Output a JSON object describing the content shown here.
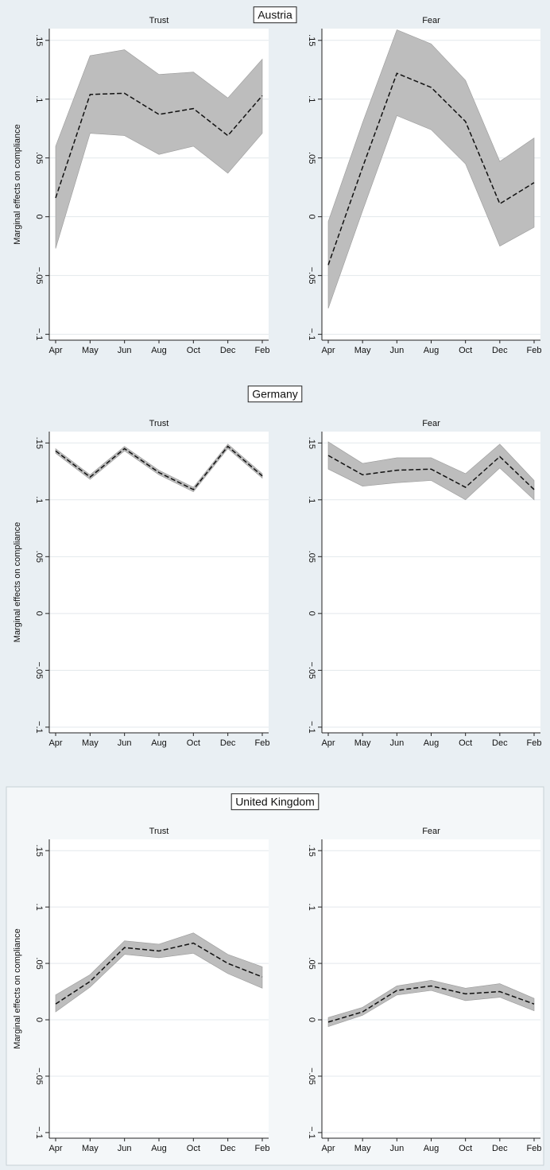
{
  "groups": [
    "Austria",
    "Germany",
    "United Kingdom"
  ],
  "chart_data": [
    {
      "type": "line",
      "title": "Trust",
      "ylabel": "Marginal effects on compliance",
      "categories": [
        "Apr",
        "May",
        "Jun",
        "Aug",
        "Oct",
        "Dec",
        "Feb"
      ],
      "values": [
        0.016,
        0.104,
        0.105,
        0.087,
        0.092,
        0.069,
        0.103
      ],
      "upper": [
        0.06,
        0.137,
        0.142,
        0.121,
        0.123,
        0.101,
        0.134
      ],
      "lower": [
        -0.027,
        0.071,
        0.069,
        0.053,
        0.06,
        0.037,
        0.071
      ],
      "line_color": "#111111",
      "band_color": "#bdbdbd",
      "ylim": [
        -0.105,
        0.16
      ],
      "yticks": [
        {
          "value": -0.1,
          "label": "−.1"
        },
        {
          "value": -0.05,
          "label": "−.05"
        },
        0,
        {
          "value": 0.05,
          "label": ".05"
        },
        {
          "value": 0.1,
          "label": ".1"
        },
        {
          "value": 0.15,
          "label": ".15"
        }
      ],
      "grid": true
    },
    {
      "type": "line",
      "title": "Fear",
      "categories": [
        "Apr",
        "May",
        "Jun",
        "Aug",
        "Oct",
        "Dec",
        "Feb"
      ],
      "values": [
        -0.041,
        0.042,
        0.122,
        0.11,
        0.081,
        0.011,
        0.029
      ],
      "upper": [
        -0.004,
        0.08,
        0.159,
        0.147,
        0.116,
        0.047,
        0.067
      ],
      "lower": [
        -0.078,
        0.005,
        0.086,
        0.074,
        0.045,
        -0.025,
        -0.009
      ],
      "line_color": "#111111",
      "band_color": "#bdbdbd",
      "ylim": [
        -0.105,
        0.16
      ],
      "yticks": [
        {
          "value": -0.1,
          "label": "−.1"
        },
        {
          "value": -0.05,
          "label": "−.05"
        },
        0,
        {
          "value": 0.05,
          "label": ".05"
        },
        {
          "value": 0.1,
          "label": ".1"
        },
        {
          "value": 0.15,
          "label": ".15"
        }
      ],
      "grid": true
    },
    {
      "type": "line",
      "title": "Trust",
      "ylabel": "Marginal effects on compliance",
      "categories": [
        "Apr",
        "May",
        "Jun",
        "Aug",
        "Oct",
        "Dec",
        "Feb"
      ],
      "values": [
        0.143,
        0.12,
        0.145,
        0.124,
        0.109,
        0.147,
        0.121
      ],
      "upper": [
        0.145,
        0.122,
        0.147,
        0.126,
        0.111,
        0.149,
        0.123
      ],
      "lower": [
        0.141,
        0.118,
        0.143,
        0.122,
        0.107,
        0.145,
        0.119
      ],
      "line_color": "#111111",
      "band_color": "#bdbdbd",
      "ylim": [
        -0.105,
        0.16
      ],
      "yticks": [
        {
          "value": -0.1,
          "label": "−.1"
        },
        {
          "value": -0.05,
          "label": "−.05"
        },
        0,
        {
          "value": 0.05,
          "label": ".05"
        },
        {
          "value": 0.1,
          "label": ".1"
        },
        {
          "value": 0.15,
          "label": ".15"
        }
      ],
      "grid": true
    },
    {
      "type": "line",
      "title": "Fear",
      "categories": [
        "Apr",
        "May",
        "Jun",
        "Aug",
        "Oct",
        "Dec",
        "Feb"
      ],
      "values": [
        0.139,
        0.122,
        0.126,
        0.127,
        0.111,
        0.138,
        0.109
      ],
      "upper": [
        0.151,
        0.132,
        0.137,
        0.137,
        0.123,
        0.149,
        0.117
      ],
      "lower": [
        0.127,
        0.112,
        0.115,
        0.117,
        0.1,
        0.128,
        0.1
      ],
      "line_color": "#111111",
      "band_color": "#bdbdbd",
      "ylim": [
        -0.105,
        0.16
      ],
      "yticks": [
        {
          "value": -0.1,
          "label": "−.1"
        },
        {
          "value": -0.05,
          "label": "−.05"
        },
        0,
        {
          "value": 0.05,
          "label": ".05"
        },
        {
          "value": 0.1,
          "label": ".1"
        },
        {
          "value": 0.15,
          "label": ".15"
        }
      ],
      "grid": true
    },
    {
      "type": "line",
      "title": "Trust",
      "ylabel": "Marginal effects on compliance",
      "categories": [
        "Apr",
        "May",
        "Jun",
        "Aug",
        "Oct",
        "Dec",
        "Feb"
      ],
      "values": [
        0.014,
        0.034,
        0.064,
        0.061,
        0.068,
        0.05,
        0.038
      ],
      "upper": [
        0.022,
        0.04,
        0.07,
        0.067,
        0.077,
        0.058,
        0.047
      ],
      "lower": [
        0.007,
        0.029,
        0.058,
        0.055,
        0.059,
        0.041,
        0.028
      ],
      "line_color": "#111111",
      "band_color": "#bdbdbd",
      "ylim": [
        -0.105,
        0.16
      ],
      "yticks": [
        {
          "value": -0.1,
          "label": "−.1"
        },
        {
          "value": -0.05,
          "label": "−.05"
        },
        0,
        {
          "value": 0.05,
          "label": ".05"
        },
        {
          "value": 0.1,
          "label": ".1"
        },
        {
          "value": 0.15,
          "label": ".15"
        }
      ],
      "grid": true
    },
    {
      "type": "line",
      "title": "Fear",
      "categories": [
        "Apr",
        "May",
        "Jun",
        "Aug",
        "Oct",
        "Dec",
        "Feb"
      ],
      "values": [
        -0.002,
        0.007,
        0.026,
        0.03,
        0.023,
        0.025,
        0.014
      ],
      "upper": [
        0.002,
        0.011,
        0.03,
        0.035,
        0.028,
        0.032,
        0.019
      ],
      "lower": [
        -0.006,
        0.004,
        0.022,
        0.026,
        0.017,
        0.02,
        0.008
      ],
      "line_color": "#111111",
      "band_color": "#bdbdbd",
      "ylim": [
        -0.105,
        0.16
      ],
      "yticks": [
        {
          "value": -0.1,
          "label": "−.1"
        },
        {
          "value": -0.05,
          "label": "−.05"
        },
        0,
        {
          "value": 0.05,
          "label": ".05"
        },
        {
          "value": 0.1,
          "label": ".1"
        },
        {
          "value": 0.15,
          "label": ".15"
        }
      ],
      "grid": true
    }
  ]
}
